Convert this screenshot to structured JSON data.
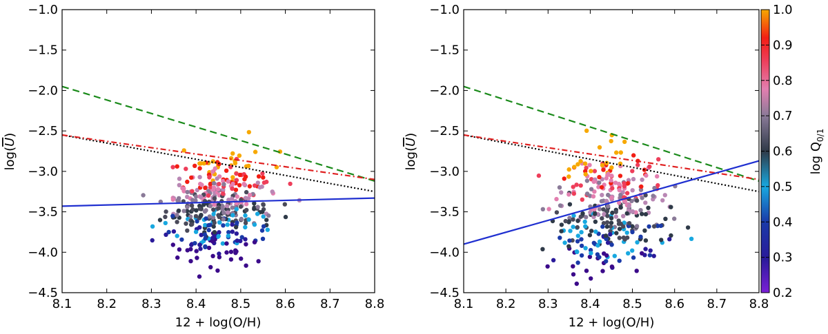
{
  "chart_data": [
    {
      "type": "scatter",
      "xlabel": "12 + log(O/H)",
      "ylabel": "log(Ū)",
      "xlim": [
        8.1,
        8.8
      ],
      "ylim": [
        -4.5,
        -1.0
      ],
      "xticks": [
        "8.1",
        "8.2",
        "8.3",
        "8.4",
        "8.5",
        "8.6",
        "8.7",
        "8.8"
      ],
      "yticks": [
        "-1.0",
        "-1.5",
        "-2.0",
        "-2.5",
        "-3.0",
        "-3.5",
        "-4.0",
        "-4.5"
      ],
      "grid": false,
      "lines": [
        {
          "style": "dashed",
          "color": "#1a8a1a",
          "x": [
            8.1,
            8.8
          ],
          "y": [
            -1.95,
            -3.12
          ]
        },
        {
          "style": "dotted",
          "color": "#000000",
          "x": [
            8.1,
            8.8
          ],
          "y": [
            -2.55,
            -3.25
          ]
        },
        {
          "style": "dashdot",
          "color": "#e02020",
          "x": [
            8.1,
            8.8
          ],
          "y": [
            -2.55,
            -3.1
          ]
        },
        {
          "style": "solid",
          "color": "#1f2fd0",
          "x": [
            8.1,
            8.8
          ],
          "y": [
            -3.43,
            -3.33
          ]
        }
      ],
      "cluster": {
        "x_center": 8.45,
        "x_spread": 0.06,
        "y_center": -3.45,
        "y_spread": 0.3,
        "count": 420,
        "seed": 7
      }
    },
    {
      "type": "scatter",
      "xlabel": "12 + log(O/H)",
      "ylabel": "log(Ū)",
      "xlim": [
        8.1,
        8.8
      ],
      "ylim": [
        -4.5,
        -1.0
      ],
      "xticks": [
        "8.1",
        "8.2",
        "8.3",
        "8.4",
        "8.5",
        "8.6",
        "8.7",
        "8.8"
      ],
      "yticks": [
        "-1.0",
        "-1.5",
        "-2.0",
        "-2.5",
        "-3.0",
        "-3.5",
        "-4.0",
        "-4.5"
      ],
      "grid": false,
      "lines": [
        {
          "style": "dashed",
          "color": "#1a8a1a",
          "x": [
            8.1,
            8.8
          ],
          "y": [
            -1.95,
            -3.12
          ]
        },
        {
          "style": "dotted",
          "color": "#000000",
          "x": [
            8.1,
            8.8
          ],
          "y": [
            -2.55,
            -3.25
          ]
        },
        {
          "style": "dashdot",
          "color": "#e02020",
          "x": [
            8.1,
            8.8
          ],
          "y": [
            -2.55,
            -3.1
          ]
        },
        {
          "style": "solid",
          "color": "#1f2fd0",
          "x": [
            8.1,
            8.8
          ],
          "y": [
            -3.9,
            -2.87
          ]
        }
      ],
      "cluster": {
        "x_center": 8.45,
        "x_spread": 0.065,
        "y_center": -3.5,
        "y_spread": 0.38,
        "count": 360,
        "seed": 19
      },
      "colorbar": {
        "label": "log Q",
        "label_sub": "0/1",
        "range": [
          0.2,
          1.0
        ],
        "ticks": [
          "1.0",
          "0.9",
          "0.8",
          "0.7",
          "0.6",
          "0.5",
          "0.4",
          "0.3",
          "0.2"
        ]
      }
    }
  ]
}
